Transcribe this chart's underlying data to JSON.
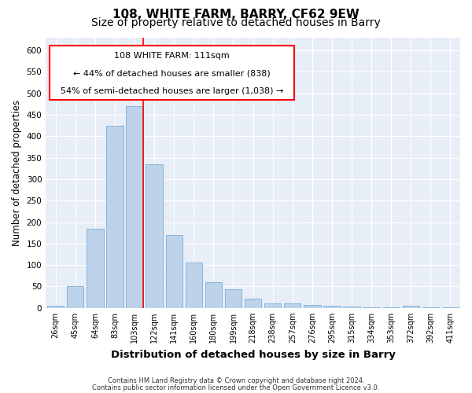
{
  "title1": "108, WHITE FARM, BARRY, CF62 9EW",
  "title2": "Size of property relative to detached houses in Barry",
  "xlabel": "Distribution of detached houses by size in Barry",
  "ylabel": "Number of detached properties",
  "bar_labels": [
    "26sqm",
    "45sqm",
    "64sqm",
    "83sqm",
    "103sqm",
    "122sqm",
    "141sqm",
    "160sqm",
    "180sqm",
    "199sqm",
    "218sqm",
    "238sqm",
    "257sqm",
    "276sqm",
    "295sqm",
    "315sqm",
    "334sqm",
    "353sqm",
    "372sqm",
    "392sqm",
    "411sqm"
  ],
  "bar_values": [
    5,
    50,
    185,
    425,
    470,
    335,
    170,
    105,
    60,
    43,
    22,
    10,
    10,
    7,
    5,
    3,
    2,
    2,
    5,
    1,
    2
  ],
  "bar_color": "#bdd3ea",
  "bar_edge_color": "#7aadd4",
  "background_color": "#e8eef8",
  "grid_color": "#ffffff",
  "ylim": [
    0,
    630
  ],
  "yticks": [
    0,
    50,
    100,
    150,
    200,
    250,
    300,
    350,
    400,
    450,
    500,
    550,
    600
  ],
  "red_line_x": 4.42,
  "annotation_text_line1": "108 WHITE FARM: 111sqm",
  "annotation_text_line2": "← 44% of detached houses are smaller (838)",
  "annotation_text_line3": "54% of semi-detached houses are larger (1,038) →",
  "footer_line1": "Contains HM Land Registry data © Crown copyright and database right 2024.",
  "footer_line2": "Contains public sector information licensed under the Open Government Licence v3.0.",
  "title1_fontsize": 11,
  "title2_fontsize": 10,
  "tick_fontsize": 7,
  "ylabel_fontsize": 8.5,
  "xlabel_fontsize": 9.5,
  "ann_fontsize": 8,
  "footer_fontsize": 6
}
